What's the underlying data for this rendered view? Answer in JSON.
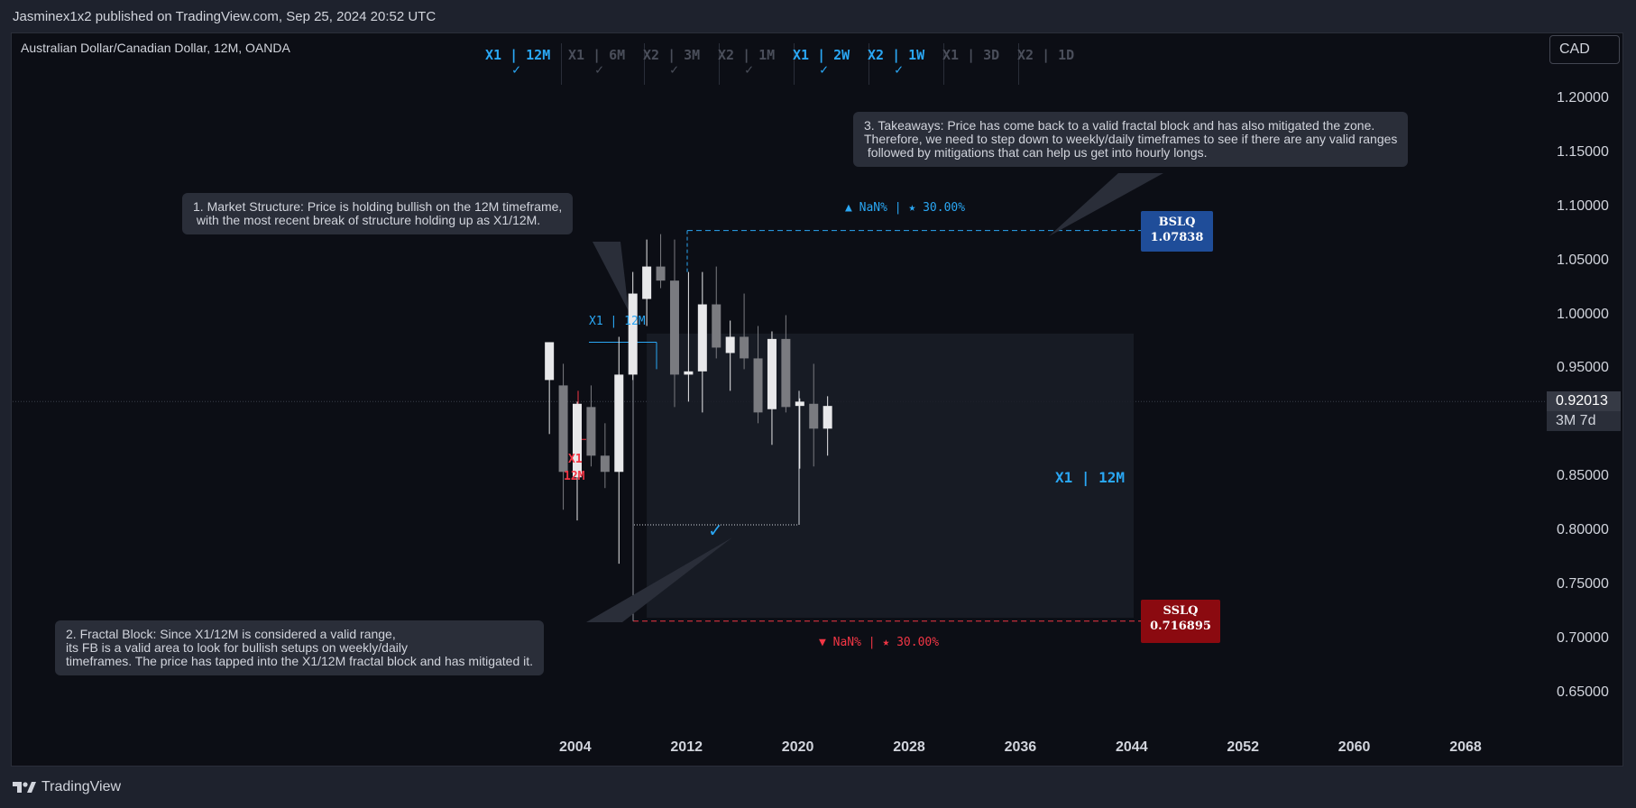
{
  "header": {
    "published_line": "Jasminex1x2 published on TradingView.com, Sep 25, 2024 20:52 UTC"
  },
  "symbol": {
    "title": "Australian Dollar/Canadian Dollar, 12M, OANDA"
  },
  "currency_button": {
    "label": "CAD"
  },
  "brand": {
    "label": "TradingView"
  },
  "timeframes": [
    {
      "label": "X1 | 12M",
      "checked": true,
      "active": true
    },
    {
      "label": "X1 | 6M",
      "checked": true,
      "active": false
    },
    {
      "label": "X2 | 3M",
      "checked": true,
      "active": false
    },
    {
      "label": "X2 | 1M",
      "checked": true,
      "active": false
    },
    {
      "label": "X1 | 2W",
      "checked": true,
      "active": true
    },
    {
      "label": "X2 | 1W",
      "checked": true,
      "active": true
    },
    {
      "label": "X1 | 3D",
      "checked": false,
      "active": false
    },
    {
      "label": "X2 | 1D",
      "checked": false,
      "active": false
    }
  ],
  "check_mark": "✓",
  "callouts": {
    "market_structure": "1. Market Structure: Price is holding bullish on the 12M timeframe,\n with the most recent break of structure holding up as X1/12M.",
    "fractal_block": "2. Fractal Block: Since X1/12M is considered a valid range,\nits FB is a valid area to look for bullish setups on weekly/daily\ntimeframes. The price has tapped into the X1/12M fractal block and has mitigated it.",
    "takeaways": "3. Takeaways: Price has come back to a valid fractal block and has also mitigated the zone.\nTherefore, we need to step down to weekly/daily timeframes to see if there are any valid ranges\n followed by mitigations that can help us get into hourly longs."
  },
  "levels": {
    "bslq": {
      "name": "BSLQ",
      "value": "1.07838",
      "stats": "▲ NaN% | ★ 30.00%"
    },
    "sslq": {
      "name": "SSLQ",
      "value": "0.716895",
      "stats": "▼ NaN% | ★ 30.00%"
    }
  },
  "annotations": {
    "x1_12m_small": "X1 | 12M",
    "x1_12m_big": "X1 | 12M",
    "x1_red": "X1",
    "m12_red": "12M"
  },
  "current_price": {
    "value": "0.92013",
    "countdown": "3M 7d"
  },
  "colors": {
    "background": "#0c0e15",
    "frame": "#1e222d",
    "blue_accent": "#2aa7f4",
    "red_accent": "#f23645",
    "bslq_box": "#1f4d99",
    "sslq_box": "#8b0a10",
    "bull_candle": "#e8e8ea",
    "bear_candle": "#7a7b80",
    "muted_tf": "#4a4e5a"
  },
  "chart_data": {
    "type": "candlestick",
    "title": "Australian Dollar/Canadian Dollar, 12M, OANDA",
    "xlabel": "",
    "ylabel": "",
    "ylim": [
      0.62,
      1.24
    ],
    "x_ticks": [
      2004,
      2012,
      2020,
      2028,
      2036,
      2044,
      2052,
      2060,
      2068
    ],
    "y_ticks": [
      "1.20000",
      "1.15000",
      "1.10000",
      "1.05000",
      "1.00000",
      "0.95000",
      "0.85000",
      "0.80000",
      "0.75000",
      "0.70000",
      "0.65000"
    ],
    "candles": [
      {
        "x": 2002,
        "o": 0.94,
        "h": 0.975,
        "l": 0.89,
        "c": 0.975
      },
      {
        "x": 2003,
        "o": 0.935,
        "h": 0.955,
        "l": 0.82,
        "c": 0.855
      },
      {
        "x": 2004,
        "o": 0.85,
        "h": 0.92,
        "l": 0.81,
        "c": 0.918
      },
      {
        "x": 2005,
        "o": 0.915,
        "h": 0.935,
        "l": 0.86,
        "c": 0.87
      },
      {
        "x": 2006,
        "o": 0.87,
        "h": 0.9,
        "l": 0.84,
        "c": 0.855
      },
      {
        "x": 2007,
        "o": 0.855,
        "h": 0.98,
        "l": 0.77,
        "c": 0.945
      },
      {
        "x": 2008,
        "o": 0.945,
        "h": 1.04,
        "l": 0.94,
        "c": 1.02
      },
      {
        "x": 2009,
        "o": 1.015,
        "h": 1.07,
        "l": 0.99,
        "c": 1.045
      },
      {
        "x": 2010,
        "o": 1.045,
        "h": 1.075,
        "l": 1.025,
        "c": 1.032
      },
      {
        "x": 2011,
        "o": 1.032,
        "h": 1.07,
        "l": 0.915,
        "c": 0.945
      },
      {
        "x": 2012,
        "o": 0.945,
        "h": 1.04,
        "l": 0.92,
        "c": 0.948
      },
      {
        "x": 2013,
        "o": 0.948,
        "h": 1.04,
        "l": 0.91,
        "c": 1.01
      },
      {
        "x": 2014,
        "o": 1.01,
        "h": 1.045,
        "l": 0.96,
        "c": 0.97
      },
      {
        "x": 2015,
        "o": 0.965,
        "h": 0.995,
        "l": 0.93,
        "c": 0.98
      },
      {
        "x": 2016,
        "o": 0.98,
        "h": 1.02,
        "l": 0.95,
        "c": 0.96
      },
      {
        "x": 2017,
        "o": 0.96,
        "h": 0.99,
        "l": 0.9,
        "c": 0.91
      },
      {
        "x": 2018,
        "o": 0.913,
        "h": 0.985,
        "l": 0.88,
        "c": 0.978
      },
      {
        "x": 2019,
        "o": 0.978,
        "h": 1.0,
        "l": 0.91,
        "c": 0.915
      },
      {
        "x": 2020,
        "o": 0.916,
        "h": 0.923,
        "l": 0.858,
        "c": 0.92
      },
      {
        "x": 2021,
        "o": 0.918,
        "h": 0.955,
        "l": 0.86,
        "c": 0.895
      },
      {
        "x": 2022,
        "o": 0.895,
        "h": 0.925,
        "l": 0.87,
        "c": 0.916
      }
    ],
    "levels": {
      "bslq": 1.07838,
      "sslq": 0.716895,
      "x1_12m_high": 0.975,
      "x1_12m_low": 0.806,
      "current": 0.92013
    },
    "zone": {
      "x_start": 2009,
      "x_end": 2044,
      "y_top": 0.983,
      "y_bottom": 0.72
    },
    "grid": false,
    "legend": "none"
  }
}
